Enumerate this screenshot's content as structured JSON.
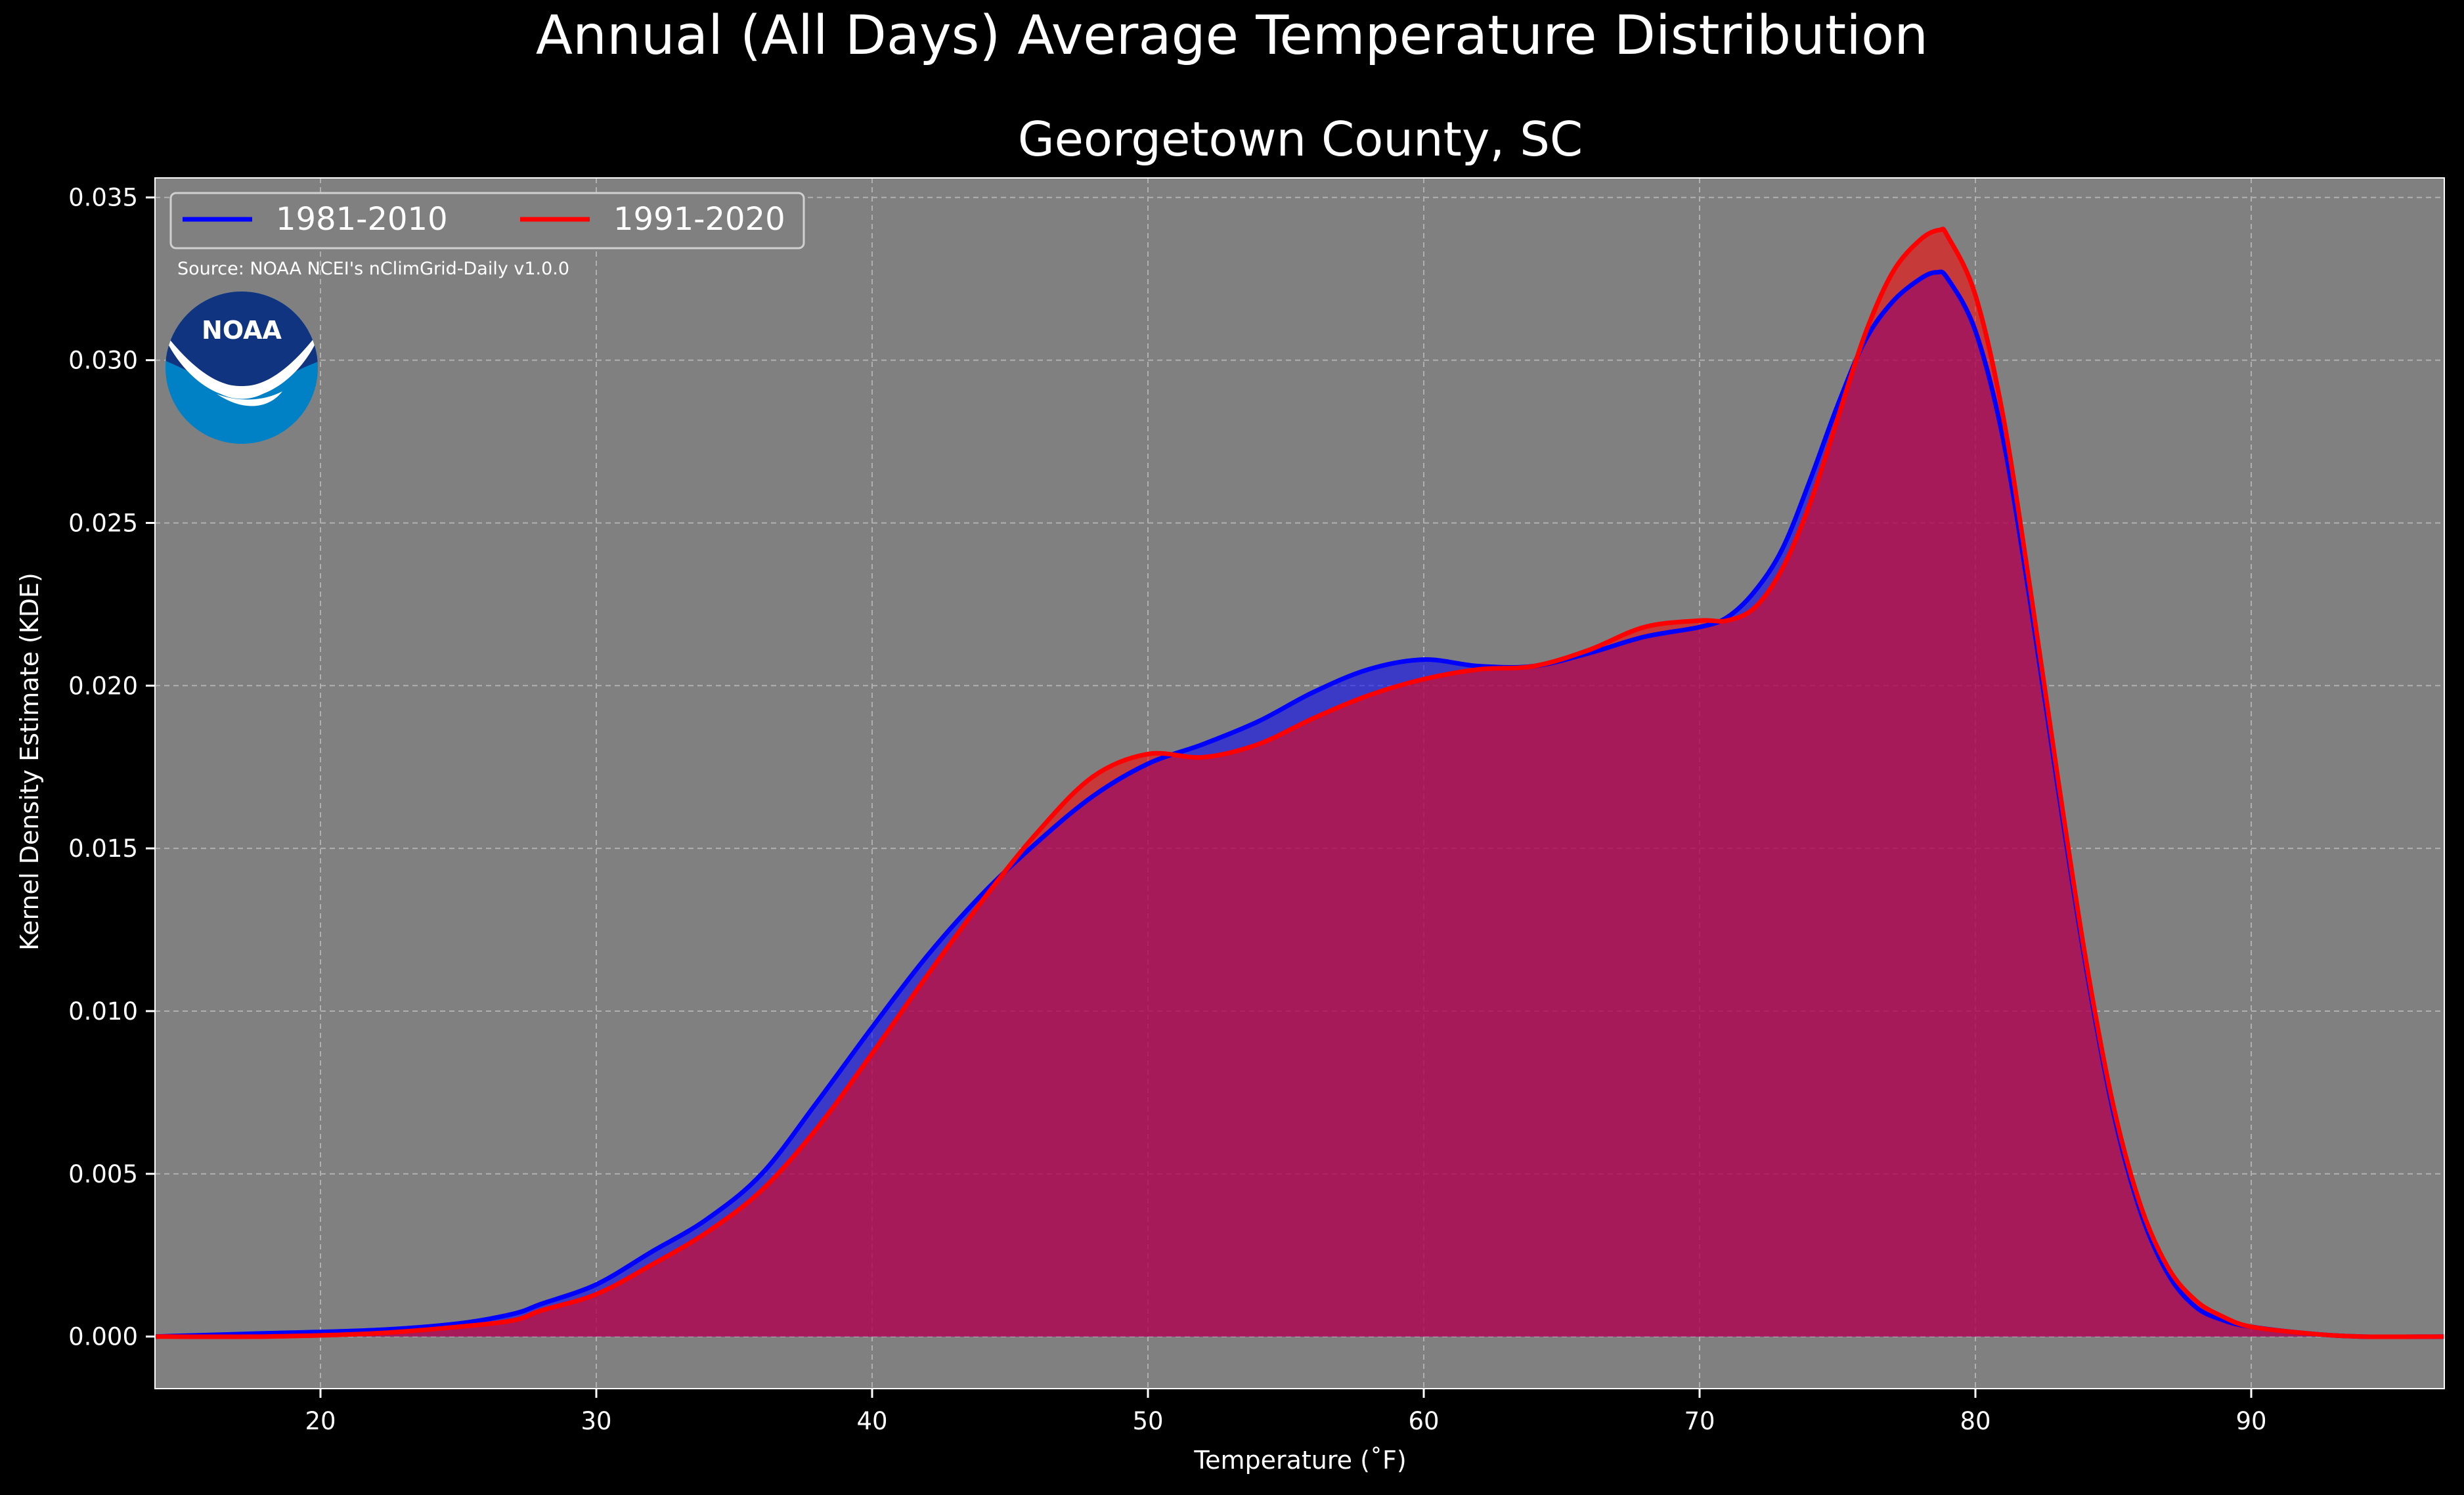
{
  "chart_data": {
    "type": "area",
    "suptitle": "Annual (All Days) Average Temperature Distribution",
    "title": "Georgetown County, SC",
    "xlabel": "Temperature (˚F)",
    "ylabel": "Kernel Density Estimate (KDE)",
    "xlim": [
      14,
      97
    ],
    "ylim": [
      -0.0016,
      0.0356
    ],
    "xticks": [
      20,
      30,
      40,
      50,
      60,
      70,
      80,
      90
    ],
    "yticks": [
      0.0,
      0.005,
      0.01,
      0.015,
      0.02,
      0.025,
      0.03,
      0.035
    ],
    "ytick_labels": [
      "0.000",
      "0.005",
      "0.010",
      "0.015",
      "0.020",
      "0.025",
      "0.030",
      "0.035"
    ],
    "grid": true,
    "legend_position": "top-left",
    "source_note": "Source: NOAA NCEI's nClimGrid-Daily v1.0.0",
    "logo_text": "NOAA",
    "colors": {
      "figure_bg": "#000000",
      "axes_bg": "#808080",
      "text": "#ffffff",
      "grid": "#b0b0b0",
      "series_1": "#0000ff",
      "series_2": "#ff0000",
      "overlap": "#9e1f5e"
    },
    "series": [
      {
        "name": "1981-2010",
        "color": "#0000ff",
        "x": [
          14,
          18,
          22,
          25,
          27,
          28,
          30,
          32,
          34,
          36,
          38,
          40,
          42,
          44,
          46,
          48,
          50,
          52,
          54,
          56,
          58,
          60,
          62,
          64,
          66,
          68,
          70,
          71,
          72,
          73,
          74,
          75,
          76,
          77,
          78,
          78.6,
          79,
          80,
          81,
          82,
          83,
          84,
          85,
          86,
          87,
          88,
          89,
          90,
          92,
          94,
          97
        ],
        "y": [
          0.0,
          0.0001,
          0.0002,
          0.0004,
          0.0007,
          0.001,
          0.0016,
          0.0026,
          0.0036,
          0.005,
          0.0072,
          0.0095,
          0.0117,
          0.0136,
          0.0152,
          0.0166,
          0.0176,
          0.0182,
          0.0189,
          0.0198,
          0.0205,
          0.0208,
          0.0206,
          0.0206,
          0.021,
          0.0215,
          0.0218,
          0.0221,
          0.0229,
          0.0242,
          0.0263,
          0.0286,
          0.0306,
          0.0318,
          0.0325,
          0.0327,
          0.0325,
          0.0309,
          0.0276,
          0.0225,
          0.0168,
          0.0114,
          0.0069,
          0.0038,
          0.0019,
          0.0009,
          0.0005,
          0.0003,
          0.0001,
          0.0,
          0.0
        ]
      },
      {
        "name": "1991-2020",
        "color": "#ff0000",
        "x": [
          14,
          18,
          22,
          25,
          27,
          28,
          30,
          32,
          34,
          36,
          38,
          40,
          42,
          44,
          46,
          48,
          50,
          52,
          54,
          56,
          58,
          60,
          62,
          64,
          66,
          68,
          70,
          71,
          72,
          73,
          74,
          75,
          76,
          77,
          78,
          78.7,
          79,
          80,
          81,
          82,
          83,
          84,
          85,
          86,
          87,
          88,
          89,
          90,
          92,
          94,
          97
        ],
        "y": [
          0.0,
          0.0,
          0.0001,
          0.0003,
          0.0005,
          0.0008,
          0.0013,
          0.0022,
          0.0032,
          0.0045,
          0.0064,
          0.0087,
          0.0111,
          0.0134,
          0.0155,
          0.0172,
          0.0179,
          0.0178,
          0.0182,
          0.019,
          0.0197,
          0.0202,
          0.0205,
          0.0206,
          0.0211,
          0.0218,
          0.022,
          0.022,
          0.0224,
          0.0236,
          0.0256,
          0.0282,
          0.0308,
          0.0327,
          0.0337,
          0.034,
          0.0338,
          0.032,
          0.0283,
          0.0229,
          0.0171,
          0.0116,
          0.0071,
          0.004,
          0.0021,
          0.0011,
          0.0006,
          0.0003,
          0.0001,
          0.0,
          0.0
        ]
      }
    ]
  }
}
